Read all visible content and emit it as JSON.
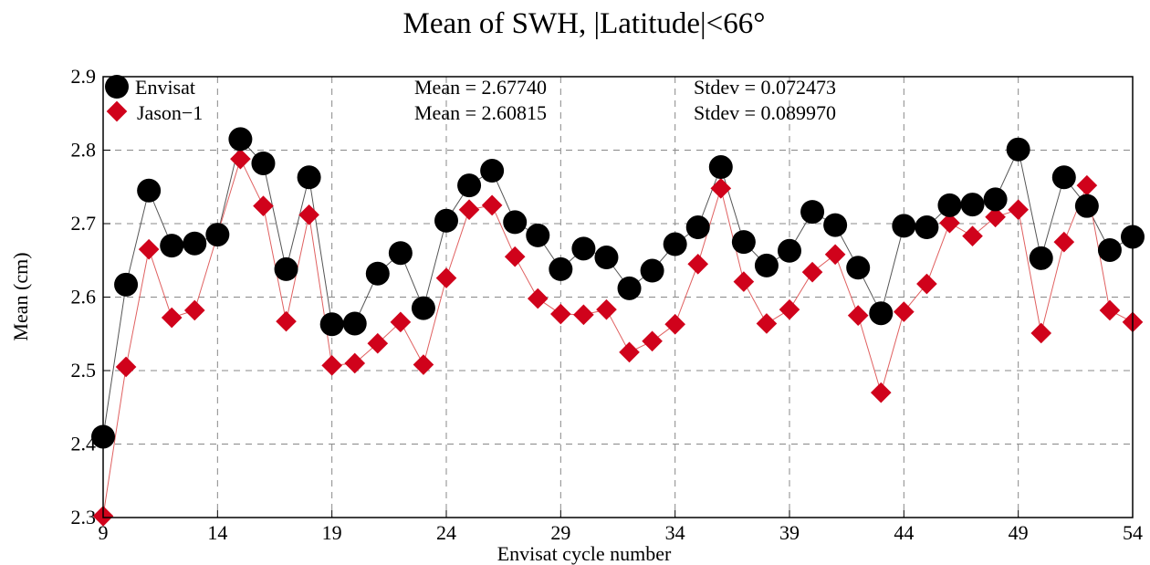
{
  "chart_data": {
    "type": "line",
    "title": "Mean of SWH, |Latitude|<66°",
    "xlabel": "Envisat cycle number",
    "ylabel": "Mean (cm)",
    "xlim": [
      9,
      54
    ],
    "ylim": [
      2.3,
      2.9
    ],
    "x_ticks": [
      "9",
      "14",
      "19",
      "24",
      "29",
      "34",
      "39",
      "44",
      "49",
      "54"
    ],
    "y_ticks": [
      "2.3",
      "2.4",
      "2.5",
      "2.6",
      "2.7",
      "2.8",
      "2.9"
    ],
    "grid": true,
    "legend_position": "top-left",
    "series": [
      {
        "name": "Envisat",
        "marker": "circle",
        "color": "#000000",
        "line_color": "#555555",
        "mean_label": "Mean = 2.67740",
        "stdev_label": "Stdev = 0.072473",
        "x": [
          9,
          10,
          11,
          12,
          13,
          14,
          15,
          16,
          17,
          18,
          19,
          20,
          21,
          22,
          23,
          24,
          25,
          26,
          27,
          28,
          29,
          30,
          31,
          32,
          33,
          34,
          35,
          36,
          37,
          38,
          39,
          40,
          41,
          42,
          43,
          44,
          45,
          46,
          47,
          48,
          49,
          50,
          51,
          52,
          53,
          54
        ],
        "values": [
          2.41,
          2.617,
          2.745,
          2.67,
          2.673,
          2.685,
          2.815,
          2.782,
          2.638,
          2.763,
          2.563,
          2.564,
          2.632,
          2.66,
          2.585,
          2.704,
          2.752,
          2.772,
          2.702,
          2.684,
          2.638,
          2.666,
          2.654,
          2.612,
          2.636,
          2.672,
          2.695,
          2.777,
          2.675,
          2.643,
          2.663,
          2.716,
          2.698,
          2.64,
          2.578,
          2.697,
          2.695,
          2.725,
          2.726,
          2.733,
          2.801,
          2.653,
          2.763,
          2.724,
          2.664,
          2.682
        ]
      },
      {
        "name": "Jason−1",
        "marker": "diamond",
        "color": "#d0021b",
        "line_color": "#e06060",
        "mean_label": "Mean = 2.60815",
        "stdev_label": "Stdev = 0.089970",
        "x": [
          9,
          10,
          11,
          12,
          13,
          14,
          15,
          16,
          17,
          18,
          19,
          20,
          21,
          22,
          23,
          24,
          25,
          26,
          27,
          28,
          29,
          30,
          31,
          32,
          33,
          34,
          35,
          36,
          37,
          38,
          39,
          40,
          41,
          42,
          43,
          44,
          45,
          46,
          47,
          48,
          49,
          50,
          51,
          52,
          53,
          54
        ],
        "values": [
          2.302,
          2.505,
          2.665,
          2.572,
          2.582,
          2.685,
          2.788,
          2.724,
          2.567,
          2.712,
          2.507,
          2.51,
          2.537,
          2.566,
          2.508,
          2.626,
          2.719,
          2.725,
          2.655,
          2.598,
          2.577,
          2.576,
          2.583,
          2.525,
          2.54,
          2.563,
          2.645,
          2.748,
          2.621,
          2.564,
          2.583,
          2.634,
          2.658,
          2.575,
          2.47,
          2.58,
          2.618,
          2.701,
          2.683,
          2.709,
          2.719,
          2.551,
          2.675,
          2.752,
          2.582,
          2.566
        ]
      }
    ]
  }
}
